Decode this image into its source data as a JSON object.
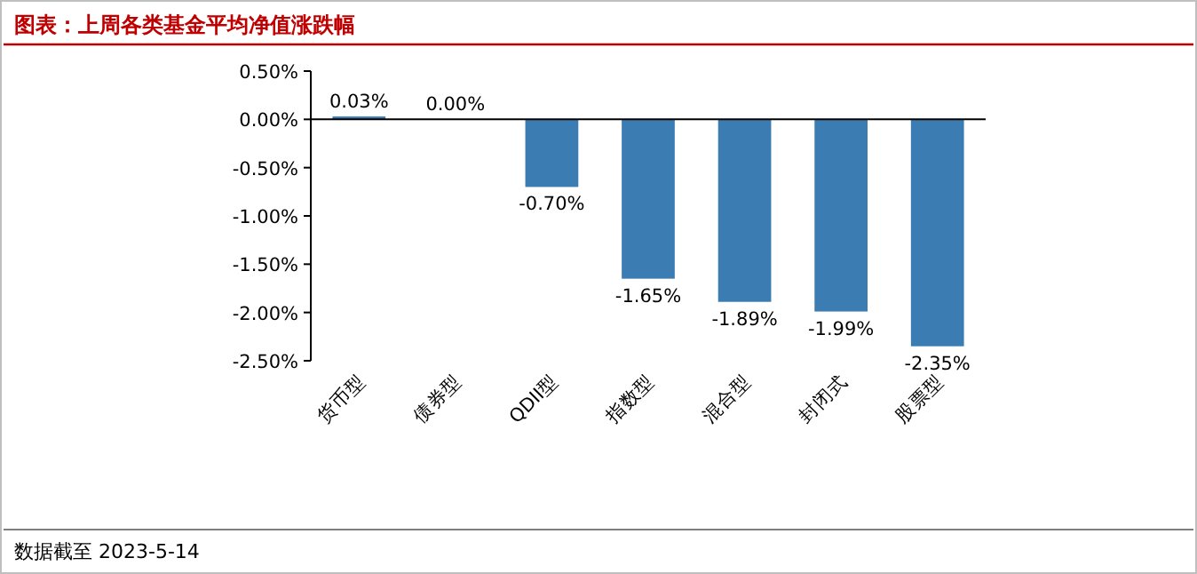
{
  "chart_data": {
    "type": "bar",
    "title": "图表：上周各类基金平均净值涨跌幅",
    "categories": [
      "货币型",
      "债券型",
      "QDII型",
      "指数型",
      "混合型",
      "封闭式",
      "股票型"
    ],
    "values": [
      0.03,
      0.0,
      -0.7,
      -1.65,
      -1.89,
      -1.99,
      -2.35
    ],
    "value_labels": [
      "0.03%",
      "0.00%",
      "-0.70%",
      "-1.65%",
      "-1.89%",
      "-1.99%",
      "-2.35%"
    ],
    "color": "#3b7cb3",
    "ylim": [
      -2.5,
      0.5
    ],
    "yticks": [
      {
        "value": 0.5,
        "label": "0.50%"
      },
      {
        "value": 0,
        "label": "0.00%"
      },
      {
        "value": -0.5,
        "label": "-0.50%"
      },
      {
        "value": -1,
        "label": "-1.00%"
      },
      {
        "value": -1.5,
        "label": "-1.50%"
      },
      {
        "value": -2,
        "label": "-2.00%"
      },
      {
        "value": -2.5,
        "label": "-2.50%"
      }
    ],
    "annotations": [
      "数据截至 2023-5-14"
    ]
  }
}
